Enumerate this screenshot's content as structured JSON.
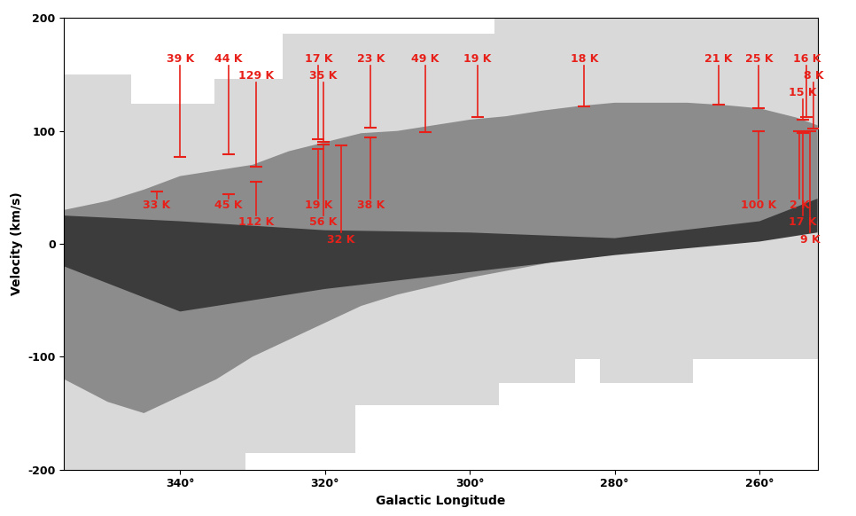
{
  "chart_data": {
    "type": "region",
    "xlabel": "Galactic Longitude",
    "ylabel": "Velocity (km/s)",
    "xlim": [
      356,
      252
    ],
    "ylim": [
      -200,
      200
    ],
    "xticks": [
      {
        "value": 340,
        "label": "340°"
      },
      {
        "value": 320,
        "label": "320°"
      },
      {
        "value": 300,
        "label": "300°"
      },
      {
        "value": 280,
        "label": "280°"
      },
      {
        "value": 260,
        "label": "260°"
      }
    ],
    "yticks": [
      -200,
      -100,
      0,
      100,
      200
    ],
    "regions": [
      {
        "color": "#d9d9d9",
        "l": [
          356,
          346.8,
          346.8,
          335.3,
          335.3,
          325.8,
          325.8,
          296.6,
          296.6,
          252,
          252,
          269.2,
          269.2,
          282,
          282,
          285.5,
          285.5,
          296,
          296,
          315.8,
          315.8,
          331,
          331,
          356
        ],
        "v": [
          150,
          150,
          124,
          124,
          146,
          146,
          186,
          186,
          200,
          200,
          -102,
          -102,
          -123,
          -123,
          -102,
          -102,
          -123,
          -123,
          -143,
          -143,
          -185,
          -185,
          -200,
          -200
        ]
      },
      {
        "color": "#8c8c8c",
        "l": [
          356,
          350,
          345,
          340,
          335,
          330,
          325,
          320,
          315,
          310,
          305,
          300,
          295,
          290,
          285,
          280,
          270,
          265,
          260,
          255,
          252,
          252,
          260,
          270,
          280,
          290,
          300,
          310,
          315,
          320,
          325,
          330,
          335,
          340,
          345,
          350,
          356
        ],
        "v": [
          30,
          38,
          48,
          60,
          65,
          70,
          82,
          90,
          98,
          100,
          105,
          110,
          113,
          118,
          122,
          125,
          125,
          123,
          120,
          112,
          105,
          20,
          10,
          3,
          -5,
          -18,
          -30,
          -45,
          -55,
          -70,
          -85,
          -100,
          -120,
          -135,
          -150,
          -140,
          -120
        ]
      },
      {
        "color": "#3c3c3c",
        "l": [
          356,
          340,
          320,
          300,
          280,
          260,
          252,
          252,
          260,
          280,
          300,
          320,
          340,
          356
        ],
        "v": [
          25,
          20,
          12,
          10,
          5,
          20,
          40,
          10,
          2,
          -10,
          -25,
          -40,
          -60,
          -20
        ]
      }
    ],
    "annotations": {
      "color": "#e8201a",
      "above": [
        {
          "text": "39 K",
          "l": 340,
          "v": 77
        },
        {
          "text": "44 K",
          "l": 333.3,
          "v": 79
        },
        {
          "text": "129 K",
          "l": 329.5,
          "v": 68
        },
        {
          "text": "17 K",
          "l": 320.9,
          "v": 93
        },
        {
          "text": "35 K",
          "l": 320.2,
          "v": 90
        },
        {
          "text": "23 K",
          "l": 313.7,
          "v": 103
        },
        {
          "text": "49 K",
          "l": 306.2,
          "v": 99
        },
        {
          "text": "19 K",
          "l": 298.9,
          "v": 112
        },
        {
          "text": "18 K",
          "l": 284.2,
          "v": 122
        },
        {
          "text": "21 K",
          "l": 265.7,
          "v": 123
        },
        {
          "text": "25 K",
          "l": 260.1,
          "v": 120
        },
        {
          "text": "16 K",
          "l": 253.5,
          "v": 112
        },
        {
          "text": "8 K",
          "l": 252.5,
          "v": 102
        },
        {
          "text": "15 K",
          "l": 254,
          "v": 110
        }
      ],
      "below": [
        {
          "text": "33 K",
          "l": 343.2,
          "v": 46
        },
        {
          "text": "45 K",
          "l": 333.3,
          "v": 44
        },
        {
          "text": "112 K",
          "l": 329.5,
          "v": 55
        },
        {
          "text": "19 K",
          "l": 320.9,
          "v": 84
        },
        {
          "text": "56 K",
          "l": 320.2,
          "v": 88
        },
        {
          "text": "32 K",
          "l": 317.8,
          "v": 87
        },
        {
          "text": "38 K",
          "l": 313.7,
          "v": 94
        },
        {
          "text": "100 K",
          "l": 260.1,
          "v": 100
        },
        {
          "text": "2 K",
          "l": 254.5,
          "v": 100
        },
        {
          "text": "17 K",
          "l": 254,
          "v": 98
        },
        {
          "text": "9 K",
          "l": 253,
          "v": 100
        }
      ]
    }
  }
}
